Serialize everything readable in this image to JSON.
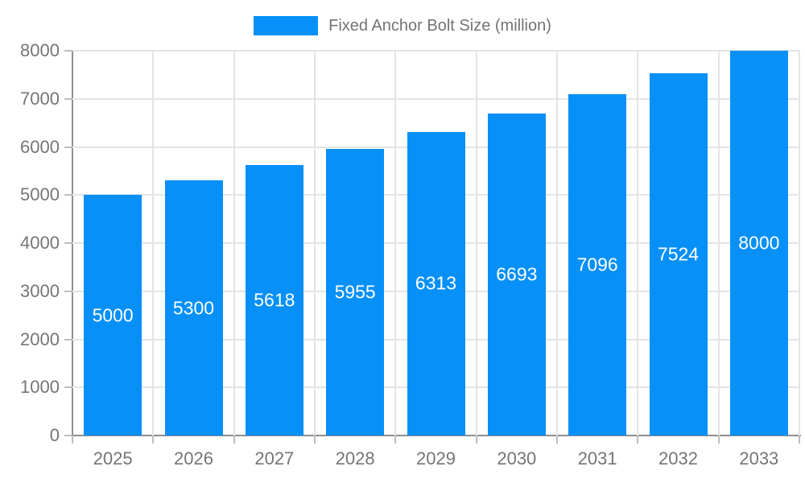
{
  "legend": {
    "label": "Fixed Anchor Bolt Size (million)",
    "position": "top"
  },
  "chart_data": {
    "type": "bar",
    "title": "",
    "xlabel": "",
    "ylabel": "",
    "categories": [
      "2025",
      "2026",
      "2027",
      "2028",
      "2029",
      "2030",
      "2031",
      "2032",
      "2033"
    ],
    "series": [
      {
        "name": "Fixed Anchor Bolt Size (million)",
        "values": [
          5000,
          5300,
          5618,
          5955,
          6313,
          6693,
          7096,
          7524,
          8000
        ]
      }
    ],
    "ylim": [
      0,
      8000
    ],
    "yticks": [
      0,
      1000,
      2000,
      3000,
      4000,
      5000,
      6000,
      7000,
      8000
    ],
    "grid": true,
    "legend_position": "top",
    "colors": {
      "bar": "#0690f8",
      "bar_value_text": "#ffffff",
      "axis_line": "#8f8f8f",
      "grid_line": "#e4e4e4",
      "tick": "#bdbdbd",
      "axis_text": "#757575"
    }
  }
}
